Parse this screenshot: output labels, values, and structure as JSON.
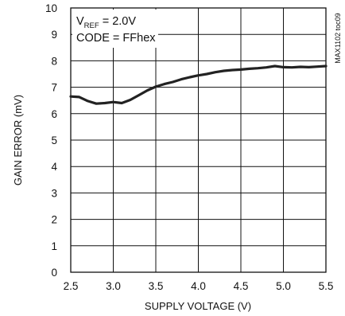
{
  "chart_data": {
    "type": "line",
    "xlabel": "SUPPLY VOLTAGE (V)",
    "ylabel": "GAIN ERROR (mV)",
    "xlim": [
      2.5,
      5.5
    ],
    "ylim": [
      0,
      10
    ],
    "xticks": [
      "2.5",
      "3.0",
      "3.5",
      "4.0",
      "4.5",
      "5.0",
      "5.5"
    ],
    "yticks": [
      "0",
      "1",
      "2",
      "3",
      "4",
      "5",
      "6",
      "7",
      "8",
      "9",
      "10"
    ],
    "grid": true,
    "annotation": {
      "vref_prefix": "V",
      "vref_sub": "REF",
      "vref_suffix": " = 2.0V",
      "code": "CODE = FFhex"
    },
    "side_label": "MAX1102 toc09",
    "series": [
      {
        "x": [
          2.5,
          2.6,
          2.7,
          2.8,
          2.9,
          3.0,
          3.1,
          3.2,
          3.3,
          3.4,
          3.5,
          3.6,
          3.7,
          3.8,
          3.9,
          4.0,
          4.1,
          4.2,
          4.3,
          4.4,
          4.5,
          4.6,
          4.7,
          4.8,
          4.9,
          5.0,
          5.1,
          5.2,
          5.3,
          5.4,
          5.5
        ],
        "y": [
          6.65,
          6.63,
          6.48,
          6.38,
          6.4,
          6.44,
          6.4,
          6.52,
          6.7,
          6.88,
          7.02,
          7.12,
          7.2,
          7.3,
          7.38,
          7.45,
          7.5,
          7.57,
          7.62,
          7.65,
          7.67,
          7.7,
          7.72,
          7.75,
          7.8,
          7.76,
          7.75,
          7.77,
          7.76,
          7.78,
          7.8
        ]
      }
    ]
  }
}
